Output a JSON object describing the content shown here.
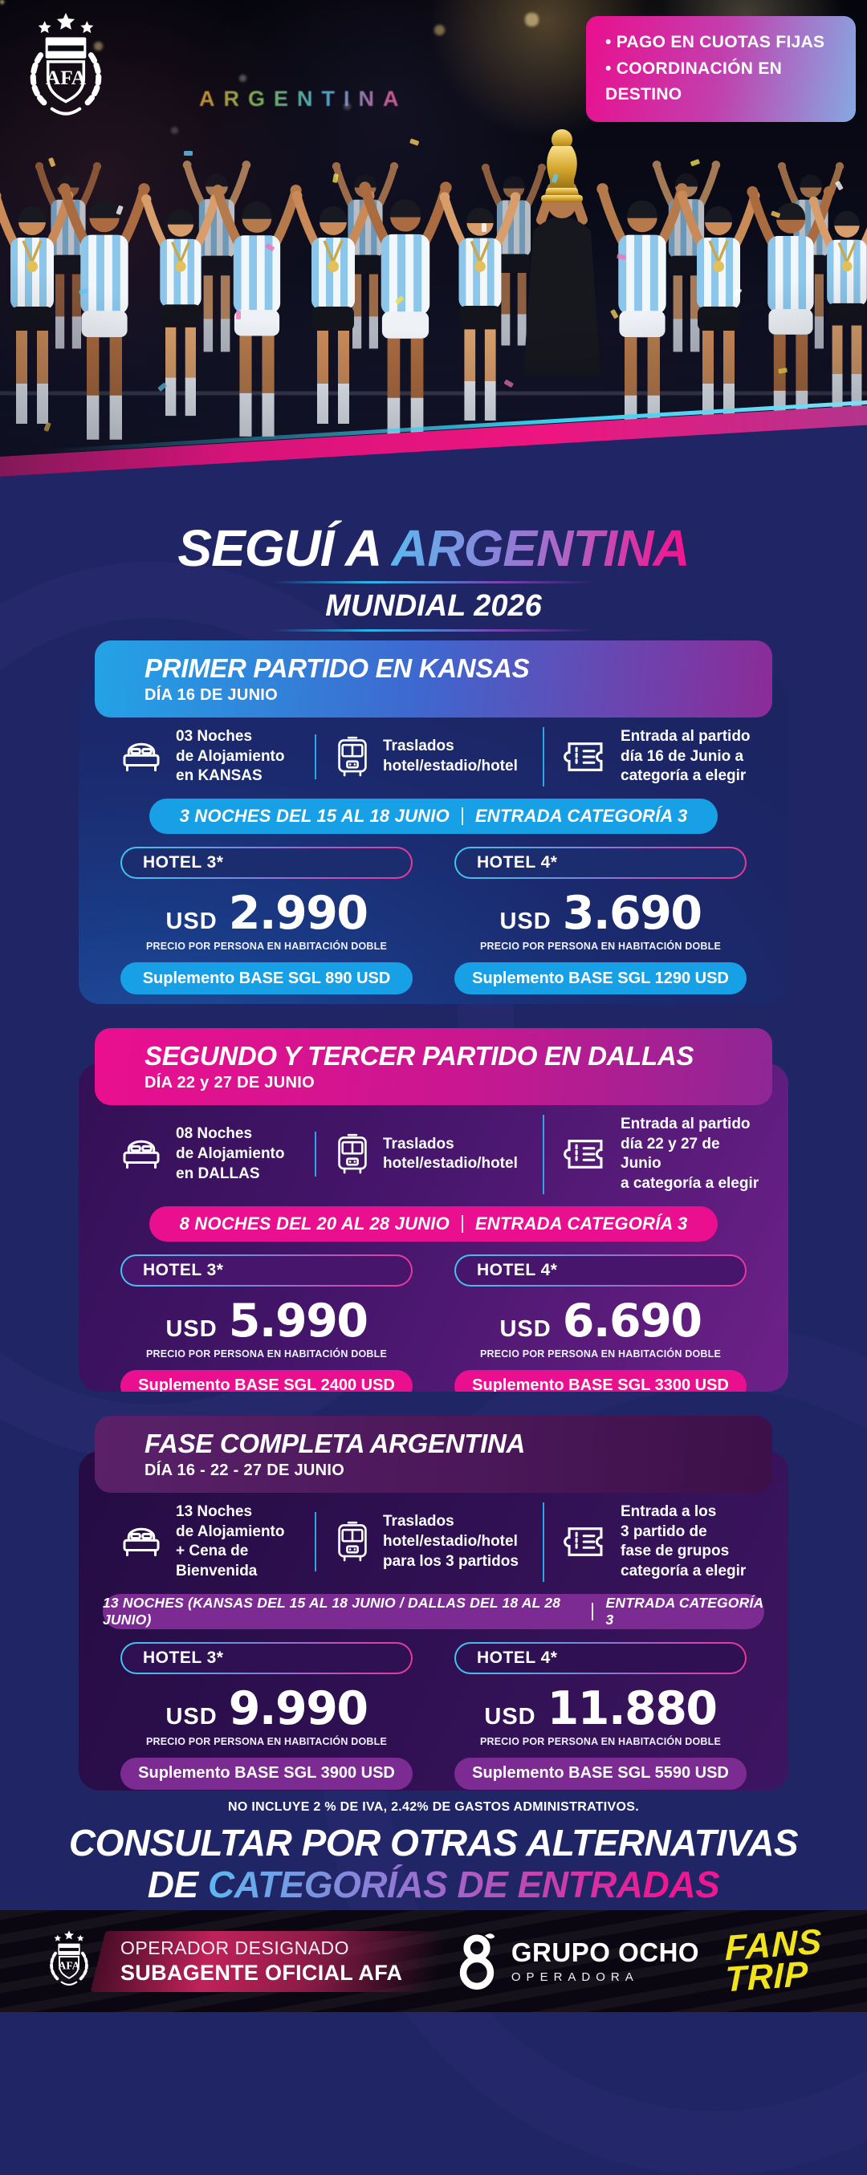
{
  "badge": {
    "lines": [
      "• PAGO EN CUOTAS FIJAS",
      "• COORDINACIÓN EN DESTINO"
    ]
  },
  "hero": {
    "stadium_sign": "ARGENTINA",
    "afa_monogram": "AFA"
  },
  "title": {
    "prefix": "SEGUÍ A",
    "highlight": "ARGENTINA",
    "subtitle": "MUNDIAL 2026"
  },
  "cards": [
    {
      "title": "PRIMER PARTIDO EN KANSAS",
      "subtitle": "DÍA 16 DE JUNIO",
      "features": [
        {
          "icon": "bed-icon",
          "text": "03 Noches\nde Alojamiento\nen KANSAS"
        },
        {
          "icon": "bus-icon",
          "text": "Traslados\nhotel/estadio/hotel"
        },
        {
          "icon": "ticket-icon",
          "text": "Entrada al partido\ndía 16 de Junio a\ncategoría a elegir"
        }
      ],
      "banner": {
        "left": "3 NOCHES DEL 15 AL 18 JUNIO",
        "right": "ENTRADA CATEGORÍA 3"
      },
      "options": [
        {
          "hotel": "HOTEL 3*",
          "currency": "USD",
          "price": "2.990",
          "caption": "PRECIO POR PERSONA EN HABITACIÓN DOBLE",
          "supplement": "Suplemento BASE SGL 890 USD"
        },
        {
          "hotel": "HOTEL 4*",
          "currency": "USD",
          "price": "3.690",
          "caption": "PRECIO POR PERSONA EN HABITACIÓN DOBLE",
          "supplement": "Suplemento BASE SGL 1290 USD"
        }
      ],
      "accent": "#18a0e6"
    },
    {
      "title": "SEGUNDO Y TERCER PARTIDO EN DALLAS",
      "subtitle": "DÍA 22 y 27 DE JUNIO",
      "features": [
        {
          "icon": "bed-icon",
          "text": "08 Noches\nde Alojamiento\nen DALLAS"
        },
        {
          "icon": "bus-icon",
          "text": "Traslados\nhotel/estadio/hotel"
        },
        {
          "icon": "ticket-icon",
          "text": "Entrada al partido\ndía 22 y 27 de Junio\na categoría a elegir"
        }
      ],
      "banner": {
        "left": "8 NOCHES DEL 20 AL 28 JUNIO",
        "right": "ENTRADA CATEGORÍA 3"
      },
      "options": [
        {
          "hotel": "HOTEL 3*",
          "currency": "USD",
          "price": "5.990",
          "caption": "PRECIO POR PERSONA EN HABITACIÓN DOBLE",
          "supplement": "Suplemento BASE SGL 2400 USD"
        },
        {
          "hotel": "HOTEL 4*",
          "currency": "USD",
          "price": "6.690",
          "caption": "PRECIO POR PERSONA EN HABITACIÓN DOBLE",
          "supplement": "Suplemento BASE SGL 3300 USD"
        }
      ],
      "accent": "#e90f8e"
    },
    {
      "title": "FASE COMPLETA ARGENTINA",
      "subtitle": "DÍA 16 - 22 - 27 DE JUNIO",
      "features": [
        {
          "icon": "bed-icon",
          "text": "13 Noches\nde Alojamiento\n+ Cena de\nBienvenida"
        },
        {
          "icon": "bus-icon",
          "text": "Traslados\nhotel/estadio/hotel\npara los 3 partidos"
        },
        {
          "icon": "ticket-icon",
          "text": "Entrada a los\n3 partido de\nfase de grupos\ncategoría a elegir"
        }
      ],
      "banner": {
        "left": "13 NOCHES (KANSAS DEL 15 AL 18 JUNIO / DALLAS DEL 18 AL 28 JUNIO)",
        "right": "ENTRADA CATEGORÍA 3"
      },
      "options": [
        {
          "hotel": "HOTEL 3*",
          "currency": "USD",
          "price": "9.990",
          "caption": "PRECIO POR PERSONA EN HABITACIÓN DOBLE",
          "supplement": "Suplemento BASE SGL 3900 USD"
        },
        {
          "hotel": "HOTEL 4*",
          "currency": "USD",
          "price": "11.880",
          "caption": "PRECIO POR PERSONA EN HABITACIÓN DOBLE",
          "supplement": "Suplemento BASE SGL 5590 USD"
        }
      ],
      "accent": "#7c2b92"
    }
  ],
  "note": "NO INCLUYE 2 % DE IVA, 2.42% DE GASTOS ADMINISTRATIVOS.",
  "cta": {
    "line1": "CONSULTAR POR OTRAS ALTERNATIVAS",
    "line2_prefix": "DE",
    "line2_highlight": "CATEGORÍAS DE ENTRADAS"
  },
  "footer": {
    "left": {
      "line1": "OPERADOR DESIGNADO",
      "line2": "SUBAGENTE OFICIAL AFA"
    },
    "center": {
      "name": "GRUPO OCHO",
      "sub": "OPERADORA"
    },
    "right": {
      "line1": "FANS",
      "line2": "TRIP"
    }
  },
  "colors": {
    "background": "#202566",
    "accent_blue": "#18a0e6",
    "accent_pink": "#e90f8e",
    "accent_purple": "#7c2b92",
    "badge_gradient": [
      "#ea0f8e",
      "#86a9e2"
    ],
    "title_gradient": [
      "#5cb8f0",
      "#ef1890"
    ],
    "fans_trip_yellow": "#f2e41c"
  }
}
